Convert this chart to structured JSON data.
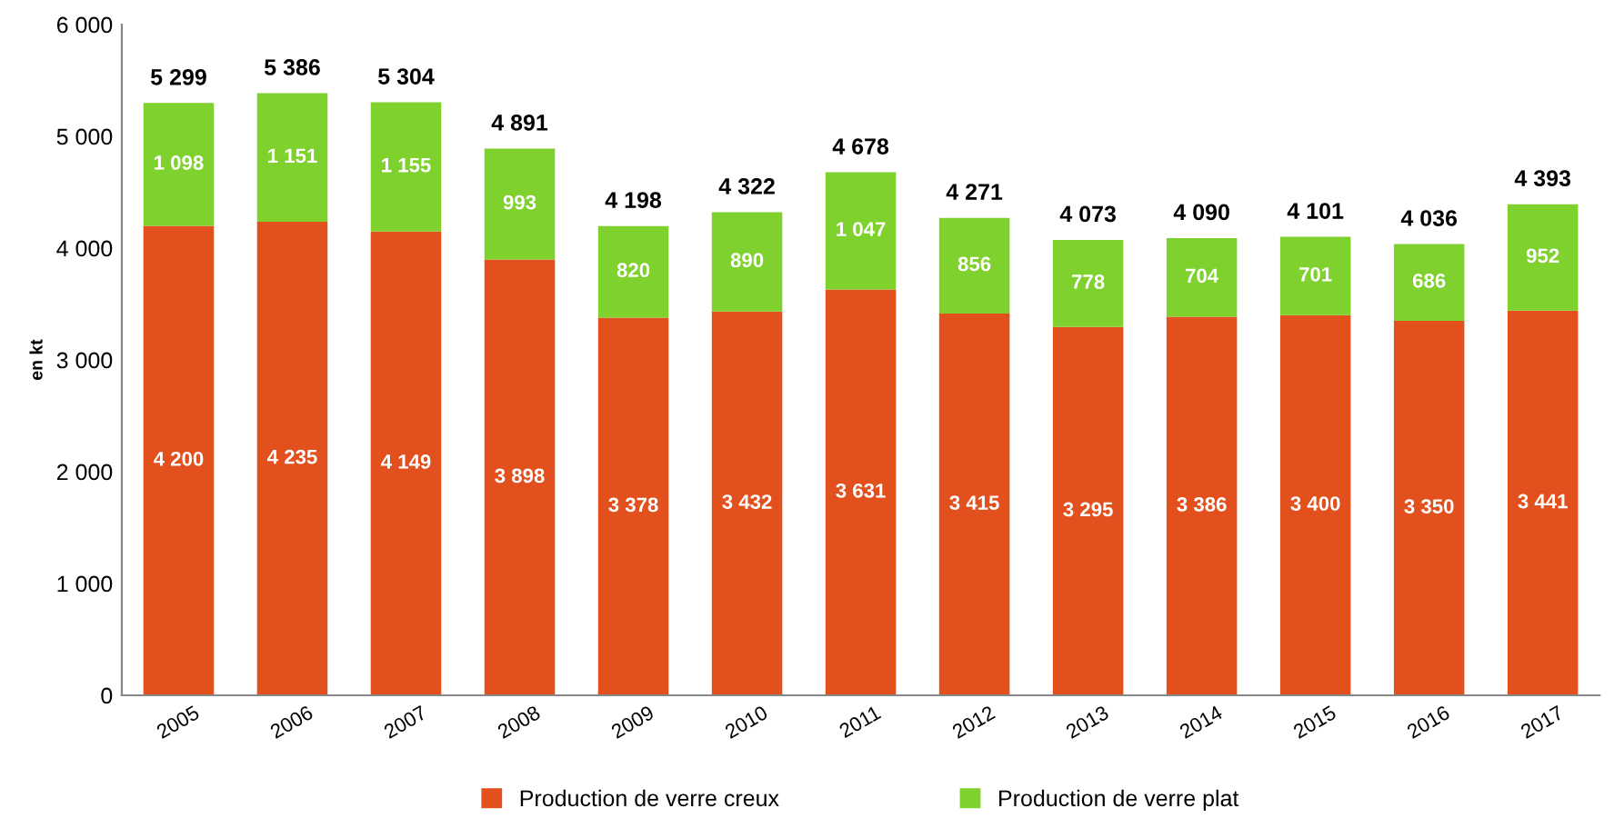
{
  "chart_data": {
    "type": "bar",
    "stacked": true,
    "ylabel": "en kt",
    "categories": [
      "2005",
      "2006",
      "2007",
      "2008",
      "2009",
      "2010",
      "2011",
      "2012",
      "2013",
      "2014",
      "2015",
      "2016",
      "2017"
    ],
    "series": [
      {
        "name": "Production de verre creux",
        "color": "#e2501e",
        "values": [
          4200,
          4235,
          4149,
          3898,
          3378,
          3432,
          3631,
          3415,
          3295,
          3386,
          3400,
          3350,
          3441
        ],
        "value_labels": [
          "4 200",
          "4 235",
          "4 149",
          "3 898",
          "3 378",
          "3 432",
          "3 631",
          "3 415",
          "3 295",
          "3 386",
          "3 400",
          "3 350",
          "3 441"
        ]
      },
      {
        "name": "Production de verre plat",
        "color": "#7fd12e",
        "values": [
          1098,
          1151,
          1155,
          993,
          820,
          890,
          1047,
          856,
          778,
          704,
          701,
          686,
          952
        ],
        "value_labels": [
          "1 098",
          "1 151",
          "1 155",
          "993",
          "820",
          "890",
          "1 047",
          "856",
          "778",
          "704",
          "701",
          "686",
          "952"
        ]
      }
    ],
    "totals": [
      "5 299",
      "5 386",
      "5 304",
      "4 891",
      "4 198",
      "4 322",
      "4 678",
      "4 271",
      "4 073",
      "4 090",
      "4 101",
      "4 036",
      "4 393"
    ],
    "ylim": [
      0,
      6000
    ],
    "yticks": [
      0,
      {
        "value": 1000,
        "label": "1 000"
      },
      {
        "value": 2000,
        "label": "2 000"
      },
      {
        "value": 3000,
        "label": "3 000"
      },
      {
        "value": 4000,
        "label": "4 000"
      },
      {
        "value": 5000,
        "label": "5 000"
      },
      {
        "value": 6000,
        "label": "6 000"
      }
    ],
    "grid": false,
    "legend": "bottom"
  }
}
